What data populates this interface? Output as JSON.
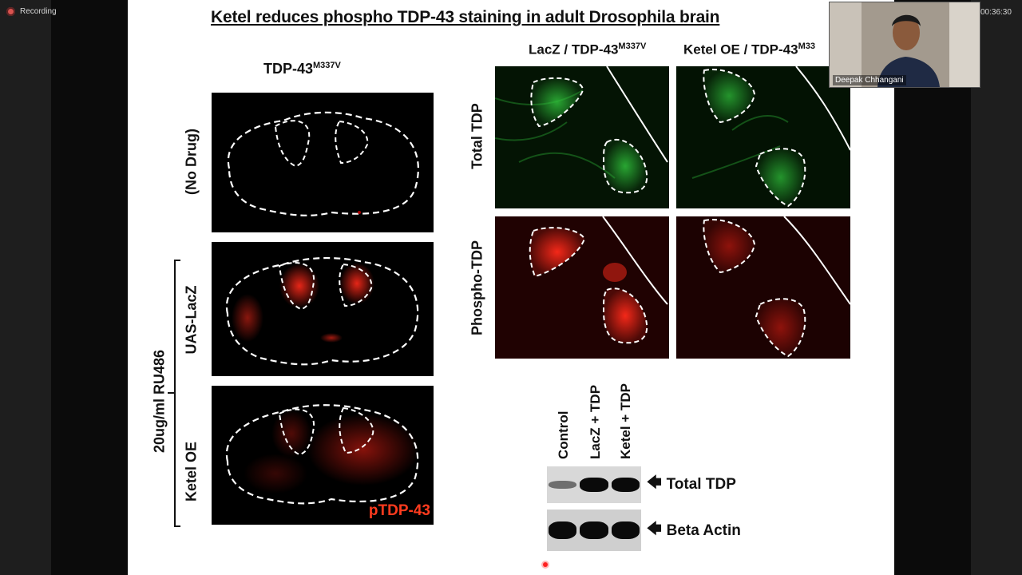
{
  "recording": {
    "label": "Recording"
  },
  "timer": "00:36:30",
  "participant": {
    "name": "Deepak Chhangani"
  },
  "slide": {
    "title": "Ketel reduces phospho TDP-43 staining in adult Drosophila brain",
    "left_header": {
      "base": "TDP-43",
      "sup": "M337V"
    },
    "right_headers": [
      {
        "base": "LacZ / TDP-43",
        "sup": "M337V"
      },
      {
        "base": "Ketel OE / TDP-43",
        "sup": "M33"
      }
    ],
    "left_row_labels": [
      "(No Drug)",
      "UAS-LacZ",
      "Ketel OE"
    ],
    "group_label": "20ug/ml RU486",
    "panel_tag": "pTDP-43",
    "right_row_labels": [
      "Total TDP",
      "Phospho-TDP"
    ],
    "blot_lanes": [
      "Control",
      "LacZ + TDP",
      "Ketel + TDP"
    ],
    "blot_bands": [
      {
        "label": "Total TDP",
        "intensity": [
          0.35,
          1.0,
          1.0
        ]
      },
      {
        "label": "Beta Actin",
        "intensity": [
          1.0,
          1.0,
          1.0
        ]
      }
    ],
    "arrow_glyph": "🡄"
  },
  "colors": {
    "total_stain": "#2fbf3a",
    "phospho_stain": "#ff2a1a",
    "tag": "#ff3b1e"
  }
}
